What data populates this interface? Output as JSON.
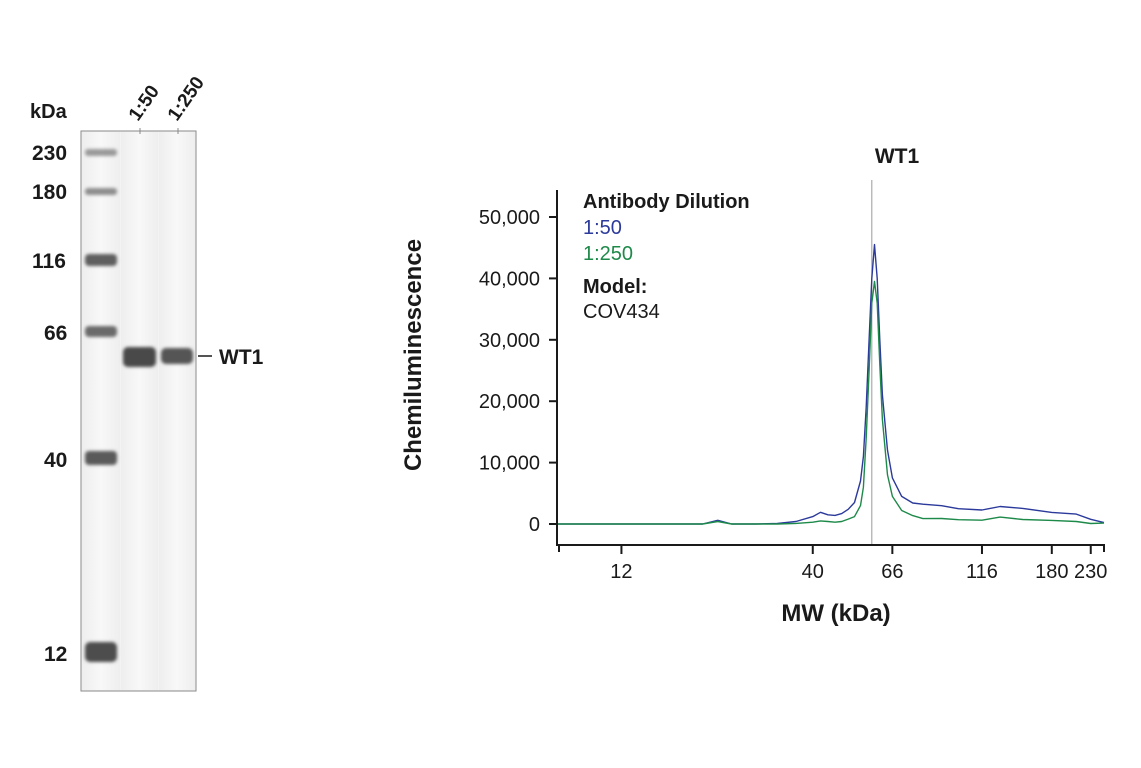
{
  "blot": {
    "unit_label": "kDa",
    "lanes": [
      "1:50",
      "1:250"
    ],
    "markers": [
      "230",
      "180",
      "116",
      "66",
      "40",
      "12"
    ],
    "marker_kda": [
      230,
      180,
      116,
      66,
      40,
      12
    ],
    "band_label": "WT1"
  },
  "chart_data": {
    "type": "line",
    "title": "WT1",
    "xlabel": "MW (kDa)",
    "ylabel": "Chemiluminescence",
    "x_scale": "log",
    "x_ticks": [
      12,
      40,
      66,
      116,
      180,
      230
    ],
    "x_tick_labels": [
      "12",
      "40",
      "66",
      "116",
      "180",
      "230"
    ],
    "ylim": [
      0,
      50000
    ],
    "y_ticks": [
      0,
      10000,
      20000,
      30000,
      40000,
      50000
    ],
    "y_tick_labels": [
      "0",
      "10,000",
      "20,000",
      "30,000",
      "40,000",
      "50,000"
    ],
    "peak_marker_kda": 58,
    "legend": {
      "title": "Antibody Dilution",
      "model_label": "Model:",
      "model_value": "COV434"
    },
    "series": [
      {
        "name": "1:50",
        "color": "#2b3a9b",
        "x": [
          8,
          12,
          16,
          20,
          22,
          24,
          28,
          32,
          36,
          40,
          42,
          44,
          46,
          48,
          50,
          52,
          54,
          55,
          56,
          57,
          58,
          59,
          60,
          61,
          62,
          64,
          66,
          70,
          75,
          80,
          90,
          100,
          116,
          130,
          150,
          180,
          210,
          230,
          250
        ],
        "y": [
          0,
          0,
          0,
          0,
          600,
          0,
          0,
          100,
          400,
          1200,
          1900,
          1500,
          1400,
          1700,
          2400,
          3500,
          7000,
          11000,
          19000,
          30000,
          40000,
          45500,
          40000,
          30000,
          21000,
          12000,
          7500,
          4500,
          3300,
          3300,
          3000,
          2400,
          2400,
          2800,
          2500,
          2000,
          1500,
          800,
          300
        ]
      },
      {
        "name": "1:250",
        "color": "#1e8a4a",
        "x": [
          8,
          12,
          16,
          20,
          22,
          24,
          28,
          32,
          36,
          40,
          42,
          44,
          46,
          48,
          50,
          52,
          54,
          55,
          56,
          57,
          58,
          59,
          60,
          61,
          62,
          64,
          66,
          70,
          75,
          80,
          90,
          100,
          116,
          130,
          150,
          180,
          210,
          230,
          250
        ],
        "y": [
          0,
          0,
          0,
          0,
          400,
          0,
          0,
          0,
          100,
          300,
          500,
          400,
          300,
          400,
          800,
          1200,
          3000,
          6000,
          14000,
          25000,
          36000,
          39500,
          36000,
          26000,
          17000,
          8000,
          4500,
          2200,
          1300,
          1000,
          800,
          700,
          700,
          1000,
          800,
          600,
          300,
          200,
          100
        ]
      }
    ]
  }
}
